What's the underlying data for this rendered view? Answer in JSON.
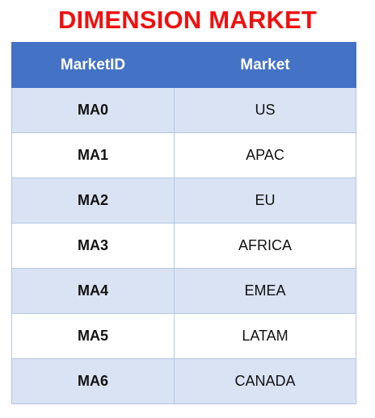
{
  "title": "DIMENSION MARKET",
  "colors": {
    "title": "#ee1111",
    "header_bg": "#4472c4",
    "header_text": "#ffffff",
    "band_row": "#dae3f3",
    "plain_row": "#ffffff"
  },
  "table": {
    "headers": [
      "MarketID",
      "Market"
    ],
    "rows": [
      [
        "MA0",
        "US"
      ],
      [
        "MA1",
        "APAC"
      ],
      [
        "MA2",
        "EU"
      ],
      [
        "MA3",
        "AFRICA"
      ],
      [
        "MA4",
        "EMEA"
      ],
      [
        "MA5",
        "LATAM"
      ],
      [
        "MA6",
        "CANADA"
      ]
    ]
  }
}
